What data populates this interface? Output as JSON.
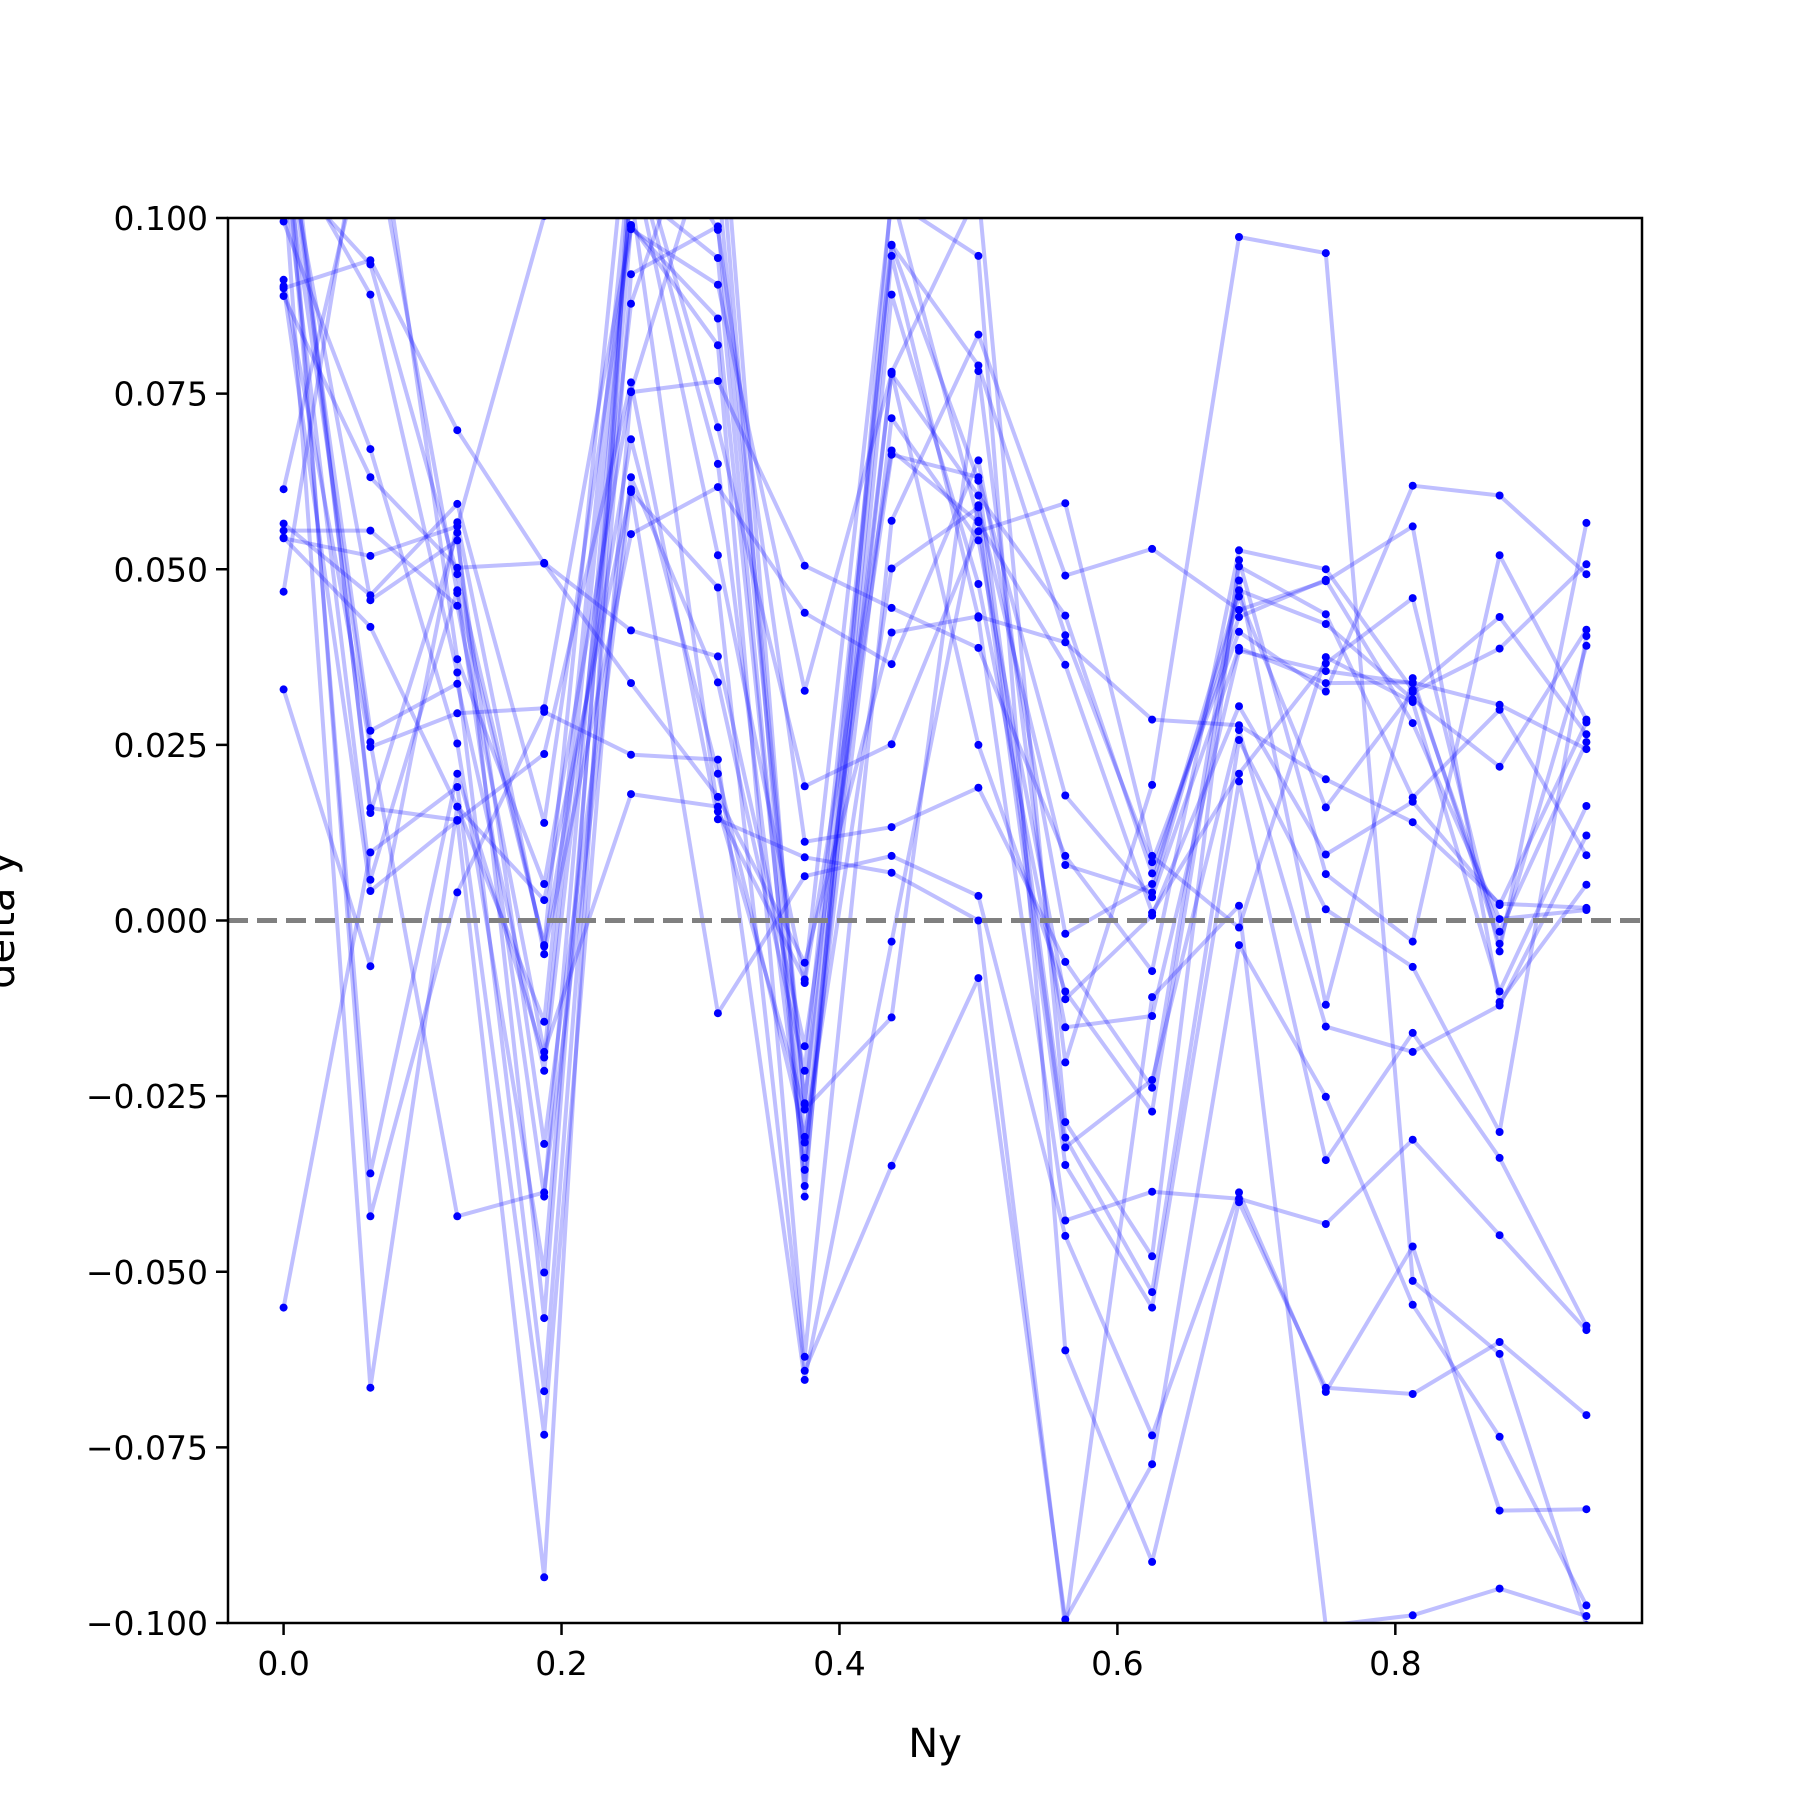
{
  "chart_data": {
    "type": "line",
    "xlabel": "Ny",
    "ylabel": "delta y",
    "xlim": [
      -0.04,
      0.9775
    ],
    "ylim": [
      -0.1,
      0.1
    ],
    "x": [
      0.0,
      0.0625,
      0.125,
      0.1875,
      0.25,
      0.3125,
      0.375,
      0.4375,
      0.5,
      0.5625,
      0.625,
      0.6875,
      0.75,
      0.8125,
      0.875,
      0.9375
    ],
    "xticks": [
      {
        "value": 0.0,
        "label": "0.0"
      },
      {
        "value": 0.2,
        "label": "0.2"
      },
      {
        "value": 0.4,
        "label": "0.4"
      },
      {
        "value": 0.6,
        "label": "0.6"
      },
      {
        "value": 0.8,
        "label": "0.8"
      }
    ],
    "yticks": [
      {
        "value": 0.1,
        "label": "0.100"
      },
      {
        "value": 0.075,
        "label": "0.075"
      },
      {
        "value": 0.05,
        "label": "0.050"
      },
      {
        "value": 0.025,
        "label": "0.025"
      },
      {
        "value": 0.0,
        "label": "0.000"
      },
      {
        "value": -0.025,
        "label": "−0.025"
      },
      {
        "value": -0.05,
        "label": "−0.050"
      },
      {
        "value": -0.075,
        "label": "−0.075"
      },
      {
        "value": -0.1,
        "label": "−0.100"
      }
    ],
    "reference_line": {
      "y": 0.0,
      "style": "dashed",
      "color": "#808080"
    },
    "line_color": "#0000ff",
    "marker_color": "#0000ff",
    "grid": false,
    "series": [
      {
        "values": [
          0.09,
          0.094,
          0.0698,
          0.0508,
          0.0338,
          0.0176,
          -0.006,
          0.041,
          0.0433,
          0.0396,
          0.0286,
          0.0278,
          0.0201,
          0.014,
          0.0024,
          0.0018
        ]
      },
      {
        "values": [
          0.0565,
          0.0463,
          0.0593,
          0.0139,
          0.0984,
          0.0905,
          0.0327,
          0.0778,
          0.0605,
          0.0434,
          0.0067,
          0.0432,
          0.0485,
          0.0281,
          0.0002,
          0.0015
        ]
      },
      {
        "values": [
          0.0614,
          0.1151,
          0.0466,
          -0.0035,
          0.119,
          0.0983,
          0.0112,
          0.0133,
          0.0189,
          -0.0059,
          -0.0238,
          0.0504,
          0.0436,
          0.0175,
          0.03,
          0.0093
        ]
      },
      {
        "values": [
          0.0544,
          0.0519,
          0.0561,
          0.1003,
          0.1134,
          0.0702,
          0.0191,
          0.0251,
          0.0554,
          0.0594,
          0.0092,
          -0.001,
          0.0375,
          0.0311,
          -0.0101,
          0.0163
        ]
      },
      {
        "values": [
          0.0889,
          0.0631,
          0.0502,
          0.0509,
          0.0413,
          0.0376,
          -0.0179,
          0.0663,
          0.0631,
          0.0178,
          0.0033,
          0.0388,
          0.0338,
          0.0339,
          0.0307,
          0.0244
        ]
      },
      {
        "values": [
          0.0468,
          0.1226,
          0.0372,
          0.0052,
          0.0752,
          0.0768,
          0.0505,
          0.0445,
          0.0388,
          0.0092,
          -0.0072,
          0.0527,
          0.05,
          0.0328,
          0.0432,
          0.0265
        ]
      },
      {
        "values": [
          0.0329,
          -0.0065,
          0.0567,
          -0.0048,
          0.055,
          0.0617,
          0.0438,
          0.0365,
          0.0655,
          -0.0019,
          0.0052,
          0.047,
          0.0422,
          0.0315,
          0.0219,
          0.0414
        ]
      },
      {
        "values": [
          0.1069,
          0.0934,
          0.0493,
          -0.0037,
          0.0685,
          0.0209,
          -0.0308,
          0.0501,
          0.0588,
          0.0079,
          0.004,
          0.0461,
          0.0161,
          0.0325,
          0.0387,
          0.0507
        ]
      },
      {
        "values": [
          0.0912,
          0.0247,
          0.0295,
          0.0302,
          0.0988,
          0.0857,
          -0.0338,
          0.0715,
          0.0541,
          -0.0112,
          0.0007,
          0.0305,
          0.0094,
          0.0169,
          0.0022,
          0.0282
        ]
      },
      {
        "values": [
          0.0545,
          0.0418,
          0.0162,
          -0.0144,
          0.1096,
          0.052,
          -0.0089,
          0.0669,
          0.0567,
          0.0364,
          0.0011,
          0.0209,
          0.0366,
          0.0459,
          -0.0044,
          0.0566
        ]
      },
      {
        "values": [
          0.1128,
          0.0456,
          0.0541,
          -0.0318,
          0.0631,
          0.0339,
          -0.0214,
          0.0962,
          0.079,
          0.0406,
          0.0083,
          0.0411,
          0.0326,
          0.0619,
          0.0605,
          0.0493
        ]
      },
      {
        "values": [
          0.0995,
          0.0671,
          0.0252,
          -0.0501,
          0.099,
          0.0819,
          -0.0621,
          0.0569,
          0.0834,
          0.0491,
          0.0529,
          0.0442,
          0.0483,
          0.0561,
          -0.0116,
          0.0051
        ]
      },
      {
        "values": [
          0.1151,
          0.027,
          0.0337,
          -0.0214,
          0.0878,
          0.1237,
          -0.0316,
          0.0781,
          0.025,
          -0.0101,
          -0.0272,
          0.0484,
          -0.012,
          0.0345,
          -0.0033,
          0.0391
        ]
      },
      {
        "values": [
          0.1076,
          0.0058,
          0.047,
          -0.0393,
          0.1042,
          0.0943,
          -0.0378,
          0.0891,
          0.0479,
          -0.0152,
          -0.0136,
          0.0384,
          0.0355,
          0.0338,
          -0.0016,
          0.0254
        ]
      },
      {
        "values": [
          0.123,
          0.0153,
          0.0552,
          -0.0566,
          0.1053,
          0.1057,
          -0.026,
          0.078,
          0.1037,
          -0.0287,
          -0.0478,
          0.0513,
          0.0066,
          -0.003,
          0.052,
          0.0286
        ]
      },
      {
        "values": [
          0.1109,
          0.0891,
          0.0353,
          -0.067,
          0.092,
          0.0988,
          -0.0262,
          0.0961,
          0.0626,
          -0.0309,
          -0.0529,
          0.0257,
          0.0016,
          -0.0066,
          -0.0301,
          0.0405
        ]
      },
      {
        "values": [
          0.12,
          -0.0421,
          0.004,
          0.0297,
          0.0236,
          0.0229,
          -0.0654,
          -0.003,
          0.0591,
          -0.0323,
          -0.0227,
          0.0271,
          -0.0151,
          -0.0187,
          -0.0121,
          0.0121
        ]
      },
      {
        "values": [
          -0.0551,
          0.0097,
          0.019,
          -0.0732,
          0.0753,
          0.1154,
          -0.0393,
          0.1037,
          0.0569,
          -0.0348,
          -0.0551,
          0.0198,
          -0.0341,
          -0.016,
          -0.0338,
          -0.0577
        ]
      },
      {
        "values": [
          0.1205,
          0.016,
          0.0143,
          -0.0935,
          0.1108,
          0.065,
          -0.0355,
          0.0946,
          0.0431,
          -0.0427,
          -0.0386,
          -0.0396,
          -0.0432,
          -0.0312,
          -0.0448,
          -0.0583
        ]
      },
      {
        "values": [
          0.1154,
          -0.036,
          0.0209,
          -0.0195,
          0.1035,
          0.0155,
          -0.0084,
          0.1026,
          0.0946,
          -0.0612,
          -0.0913,
          -0.0401,
          -0.0665,
          -0.0674,
          -0.06,
          -0.0704
        ]
      },
      {
        "values": [
          0.1063,
          -0.0665,
          0.0162,
          0.0029,
          0.0614,
          -0.0132,
          0.0063,
          0.0092,
          0.0035,
          -0.0449,
          -0.0733,
          -0.0387,
          -0.0671,
          -0.0464,
          -0.084,
          -0.0838
        ]
      },
      {
        "values": [
          0.1102,
          0.0254,
          -0.0421,
          -0.0387,
          0.061,
          0.0474,
          -0.0641,
          -0.0349,
          -0.0082,
          -0.0995,
          -0.0774,
          -0.0035,
          -0.0251,
          -0.0547,
          -0.0735,
          -0.0975
        ]
      },
      {
        "values": [
          0.0903,
          0.0042,
          0.0142,
          0.0237,
          0.0766,
          0.0144,
          0.009,
          0.0068,
          0.0,
          -0.1007,
          -0.0109,
          0.0021,
          -0.1004,
          -0.0989,
          -0.0951,
          -0.099
        ]
      },
      {
        "values": [
          0.0555,
          0.0555,
          0.0448,
          -0.0187,
          0.018,
          0.0162,
          -0.0269,
          -0.0138,
          0.0782,
          -0.0202,
          0.0193,
          0.0973,
          0.095,
          -0.0513,
          -0.0617,
          -0.1003
        ]
      }
    ]
  }
}
